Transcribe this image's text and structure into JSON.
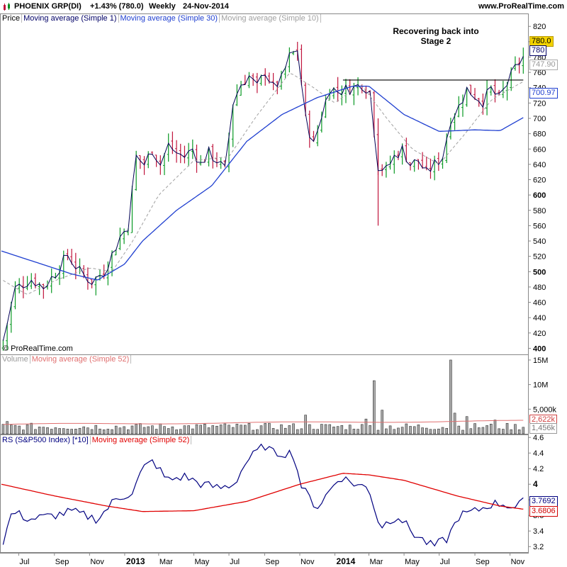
{
  "header": {
    "instrument": "PHOENIX GRP(DI)",
    "change": "+1.43% (780.0)",
    "period": "Weekly",
    "date": "24-Nov-2014",
    "site": "www.ProRealTime.com"
  },
  "price_panel": {
    "legend": [
      "Price",
      "Moving average (Simple 1)",
      "Moving average (Simple 30)",
      "Moving average (Simple 10)"
    ],
    "legend_colors": [
      "#000000",
      "#000066",
      "#1f3fd0",
      "#a0a0a0"
    ],
    "annotation": [
      "Recovering back into",
      "Stage 2"
    ],
    "copyright": "© ProRealTime.com",
    "tags": {
      "last": "780.0",
      "sma1": "780",
      "sma10": "747.90",
      "sma30": "700.97"
    },
    "resistance_level": 750
  },
  "volume_panel": {
    "legend": [
      "Volume",
      "Moving average (Simple 52)"
    ],
    "tags": {
      "ma52": "2,622k",
      "last": "1,456k"
    }
  },
  "rs_panel": {
    "legend": [
      "RS (S&P500 Index) [*10]",
      "Moving average (Simple 52)"
    ],
    "tags": {
      "rs": "3.7692",
      "ma52": "3.6806"
    }
  },
  "x_axis": {
    "labels": [
      "Jul",
      "Sep",
      "Nov",
      "2013",
      "Mar",
      "May",
      "Jul",
      "Sep",
      "Nov",
      "2014",
      "Mar",
      "May",
      "Jul",
      "Sep",
      "Nov"
    ],
    "bold": [
      "2013",
      "2014"
    ]
  },
  "chart_data": [
    {
      "type": "candlestick",
      "title": "PHOENIX GRP(DI)",
      "ylim": [
        393,
        835
      ],
      "y_ticks": [
        400,
        420,
        440,
        460,
        480,
        500,
        520,
        540,
        560,
        580,
        600,
        620,
        640,
        660,
        680,
        700,
        720,
        740,
        760,
        780,
        800,
        820
      ],
      "y_bold": [
        400,
        500,
        600,
        800
      ],
      "x_range": [
        "2012-06-01",
        "2014-12-01"
      ],
      "closes_keypoints": [
        {
          "date": "2012-06-04",
          "close": 410
        },
        {
          "date": "2012-06-25",
          "close": 478
        },
        {
          "date": "2012-07-23",
          "close": 490
        },
        {
          "date": "2012-08-13",
          "close": 480
        },
        {
          "date": "2012-09-03",
          "close": 498
        },
        {
          "date": "2012-09-24",
          "close": 522
        },
        {
          "date": "2012-10-15",
          "close": 500
        },
        {
          "date": "2012-11-05",
          "close": 487
        },
        {
          "date": "2012-11-26",
          "close": 500
        },
        {
          "date": "2012-12-10",
          "close": 522
        },
        {
          "date": "2012-12-24",
          "close": 545
        },
        {
          "date": "2013-01-07",
          "close": 560
        },
        {
          "date": "2013-01-21",
          "close": 650
        },
        {
          "date": "2013-02-04",
          "close": 640
        },
        {
          "date": "2013-02-18",
          "close": 660
        },
        {
          "date": "2013-03-04",
          "close": 640
        },
        {
          "date": "2013-03-18",
          "close": 665
        },
        {
          "date": "2013-04-01",
          "close": 655
        },
        {
          "date": "2013-04-15",
          "close": 650
        },
        {
          "date": "2013-04-29",
          "close": 660
        },
        {
          "date": "2013-05-13",
          "close": 640
        },
        {
          "date": "2013-05-27",
          "close": 655
        },
        {
          "date": "2013-06-10",
          "close": 645
        },
        {
          "date": "2013-06-24",
          "close": 632
        },
        {
          "date": "2013-07-08",
          "close": 720
        },
        {
          "date": "2013-07-22",
          "close": 745
        },
        {
          "date": "2013-08-05",
          "close": 755
        },
        {
          "date": "2013-08-19",
          "close": 740
        },
        {
          "date": "2013-09-02",
          "close": 762
        },
        {
          "date": "2013-09-16",
          "close": 740
        },
        {
          "date": "2013-09-30",
          "close": 750
        },
        {
          "date": "2013-10-14",
          "close": 780
        },
        {
          "date": "2013-10-28",
          "close": 790
        },
        {
          "date": "2013-11-11",
          "close": 700
        },
        {
          "date": "2013-11-25",
          "close": 665
        },
        {
          "date": "2013-12-09",
          "close": 705
        },
        {
          "date": "2013-12-23",
          "close": 740
        },
        {
          "date": "2014-01-06",
          "close": 735
        },
        {
          "date": "2014-01-20",
          "close": 738
        },
        {
          "date": "2014-02-03",
          "close": 740
        },
        {
          "date": "2014-02-17",
          "close": 745
        },
        {
          "date": "2014-03-03",
          "close": 735
        },
        {
          "date": "2014-03-17",
          "close": 638
        },
        {
          "date": "2014-03-31",
          "close": 632
        },
        {
          "date": "2014-04-14",
          "close": 650
        },
        {
          "date": "2014-04-28",
          "close": 660
        },
        {
          "date": "2014-05-12",
          "close": 640
        },
        {
          "date": "2014-05-26",
          "close": 645
        },
        {
          "date": "2014-06-09",
          "close": 628
        },
        {
          "date": "2014-06-23",
          "close": 640
        },
        {
          "date": "2014-07-07",
          "close": 650
        },
        {
          "date": "2014-07-21",
          "close": 700
        },
        {
          "date": "2014-08-04",
          "close": 715
        },
        {
          "date": "2014-08-18",
          "close": 738
        },
        {
          "date": "2014-09-01",
          "close": 730
        },
        {
          "date": "2014-09-15",
          "close": 722
        },
        {
          "date": "2014-09-29",
          "close": 738
        },
        {
          "date": "2014-10-13",
          "close": 725
        },
        {
          "date": "2014-10-27",
          "close": 745
        },
        {
          "date": "2014-11-10",
          "close": 765
        },
        {
          "date": "2014-11-24",
          "close": 780
        }
      ],
      "sma30_keypoints": [
        {
          "date": "2012-06-01",
          "value": 527
        },
        {
          "date": "2012-08-01",
          "value": 512
        },
        {
          "date": "2012-10-01",
          "value": 497
        },
        {
          "date": "2012-11-15",
          "value": 489
        },
        {
          "date": "2013-01-01",
          "value": 510
        },
        {
          "date": "2013-02-01",
          "value": 540
        },
        {
          "date": "2013-04-01",
          "value": 580
        },
        {
          "date": "2013-06-01",
          "value": 612
        },
        {
          "date": "2013-08-01",
          "value": 670
        },
        {
          "date": "2013-10-01",
          "value": 705
        },
        {
          "date": "2013-12-01",
          "value": 727
        },
        {
          "date": "2014-02-01",
          "value": 742
        },
        {
          "date": "2014-03-01",
          "value": 742
        },
        {
          "date": "2014-05-01",
          "value": 705
        },
        {
          "date": "2014-07-01",
          "value": 683
        },
        {
          "date": "2014-09-01",
          "value": 685
        },
        {
          "date": "2014-10-15",
          "value": 684
        },
        {
          "date": "2014-11-24",
          "value": 701
        }
      ],
      "sma10_keypoints": [
        {
          "date": "2012-06-01",
          "value": 490
        },
        {
          "date": "2012-07-15",
          "value": 470
        },
        {
          "date": "2012-09-01",
          "value": 488
        },
        {
          "date": "2012-11-01",
          "value": 505
        },
        {
          "date": "2012-12-10",
          "value": 500
        },
        {
          "date": "2013-01-15",
          "value": 540
        },
        {
          "date": "2013-03-01",
          "value": 600
        },
        {
          "date": "2013-05-01",
          "value": 645
        },
        {
          "date": "2013-07-01",
          "value": 650
        },
        {
          "date": "2013-08-15",
          "value": 700
        },
        {
          "date": "2013-10-15",
          "value": 760
        },
        {
          "date": "2013-11-25",
          "value": 740
        },
        {
          "date": "2014-01-01",
          "value": 720
        },
        {
          "date": "2014-02-15",
          "value": 745
        },
        {
          "date": "2014-04-01",
          "value": 700
        },
        {
          "date": "2014-05-15",
          "value": 660
        },
        {
          "date": "2014-07-01",
          "value": 640
        },
        {
          "date": "2014-08-15",
          "value": 680
        },
        {
          "date": "2014-10-01",
          "value": 725
        },
        {
          "date": "2014-11-24",
          "value": 748
        }
      ]
    },
    {
      "type": "bar",
      "title": "Volume",
      "ylim": [
        0,
        16000000
      ],
      "y_ticks": [
        {
          "value": 5000000,
          "label": "5,000k"
        },
        {
          "value": 10000000,
          "label": "10M"
        },
        {
          "value": 15000000,
          "label": "15M"
        }
      ],
      "spikes": [
        {
          "date": "2012-06-11",
          "value": 2500000
        },
        {
          "date": "2013-11-11",
          "value": 3800000
        },
        {
          "date": "2014-02-24",
          "value": 3000000
        },
        {
          "date": "2014-03-10",
          "value": 10800000
        },
        {
          "date": "2014-03-24",
          "value": 4800000
        },
        {
          "date": "2014-07-21",
          "value": 15000000
        },
        {
          "date": "2014-07-28",
          "value": 4200000
        },
        {
          "date": "2014-08-18",
          "value": 3500000
        },
        {
          "date": "2014-10-06",
          "value": 2800000
        }
      ],
      "baseline_volume": 1200000,
      "ma52": 2622000,
      "last": 1456000
    },
    {
      "type": "line",
      "title": "RS (S&P500 Index) [*10]",
      "ylim": [
        3.12,
        4.62
      ],
      "y_ticks": [
        3.2,
        3.4,
        3.6,
        3.8,
        4.0,
        4.2,
        4.4,
        4.6
      ],
      "y_bold": [
        4.0
      ],
      "rs_keypoints": [
        {
          "date": "2012-06-01",
          "value": 3.2
        },
        {
          "date": "2012-06-20",
          "value": 3.65
        },
        {
          "date": "2012-07-20",
          "value": 3.55
        },
        {
          "date": "2012-09-01",
          "value": 3.6
        },
        {
          "date": "2012-10-01",
          "value": 3.65
        },
        {
          "date": "2012-11-15",
          "value": 3.55
        },
        {
          "date": "2012-12-15",
          "value": 3.8
        },
        {
          "date": "2013-01-15",
          "value": 3.9
        },
        {
          "date": "2013-02-01",
          "value": 4.2
        },
        {
          "date": "2013-02-20",
          "value": 4.3
        },
        {
          "date": "2013-03-15",
          "value": 4.05
        },
        {
          "date": "2013-04-15",
          "value": 4.1
        },
        {
          "date": "2013-05-15",
          "value": 4.0
        },
        {
          "date": "2013-06-15",
          "value": 3.95
        },
        {
          "date": "2013-07-10",
          "value": 4.0
        },
        {
          "date": "2013-08-01",
          "value": 4.3
        },
        {
          "date": "2013-09-01",
          "value": 4.5
        },
        {
          "date": "2013-09-15",
          "value": 4.4
        },
        {
          "date": "2013-10-20",
          "value": 4.4
        },
        {
          "date": "2013-11-05",
          "value": 3.95
        },
        {
          "date": "2013-12-01",
          "value": 3.7
        },
        {
          "date": "2014-01-10",
          "value": 4.1
        },
        {
          "date": "2014-02-05",
          "value": 4.0
        },
        {
          "date": "2014-03-01",
          "value": 3.95
        },
        {
          "date": "2014-03-20",
          "value": 3.45
        },
        {
          "date": "2014-04-20",
          "value": 3.6
        },
        {
          "date": "2014-05-20",
          "value": 3.35
        },
        {
          "date": "2014-06-20",
          "value": 3.2
        },
        {
          "date": "2014-07-15",
          "value": 3.3
        },
        {
          "date": "2014-08-05",
          "value": 3.6
        },
        {
          "date": "2014-09-01",
          "value": 3.65
        },
        {
          "date": "2014-10-01",
          "value": 3.75
        },
        {
          "date": "2014-10-20",
          "value": 3.75
        },
        {
          "date": "2014-11-10",
          "value": 3.7
        },
        {
          "date": "2014-11-24",
          "value": 3.77
        }
      ],
      "ma52_keypoints": [
        {
          "date": "2012-06-01",
          "value": 4.0
        },
        {
          "date": "2012-09-01",
          "value": 3.85
        },
        {
          "date": "2012-12-01",
          "value": 3.72
        },
        {
          "date": "2013-02-01",
          "value": 3.65
        },
        {
          "date": "2013-05-01",
          "value": 3.66
        },
        {
          "date": "2013-08-01",
          "value": 3.78
        },
        {
          "date": "2013-11-01",
          "value": 4.0
        },
        {
          "date": "2014-01-15",
          "value": 4.14
        },
        {
          "date": "2014-03-01",
          "value": 4.12
        },
        {
          "date": "2014-05-01",
          "value": 4.05
        },
        {
          "date": "2014-08-01",
          "value": 3.85
        },
        {
          "date": "2014-10-15",
          "value": 3.72
        },
        {
          "date": "2014-11-24",
          "value": 3.68
        }
      ],
      "last_rs": 3.7692,
      "last_ma52": 3.6806
    }
  ]
}
